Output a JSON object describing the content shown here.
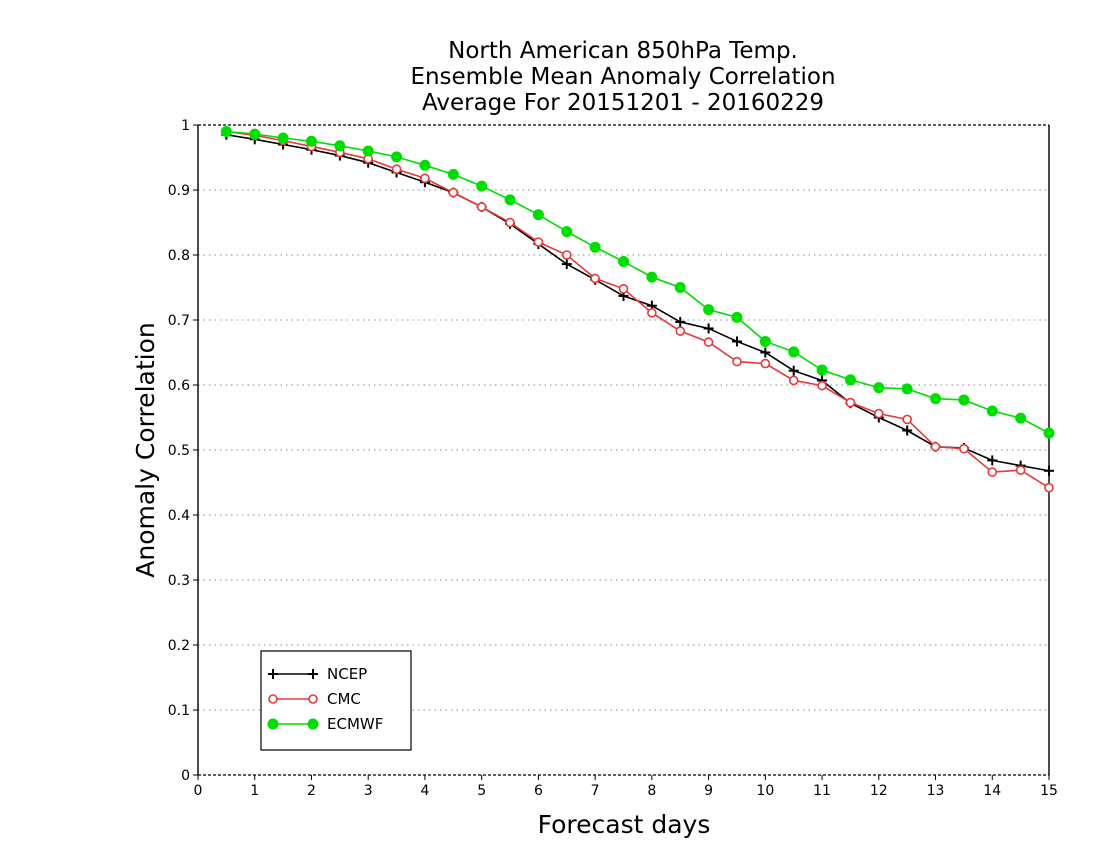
{
  "chart_data": {
    "type": "line",
    "title": [
      "North American 850hPa Temp.",
      "Ensemble Mean Anomaly Correlation",
      "Average For 20151201 - 20160229"
    ],
    "xlabel": "Forecast days",
    "ylabel": "Anomaly Correlation",
    "xlim": [
      0,
      15
    ],
    "ylim": [
      0,
      1
    ],
    "xticks": [
      0,
      1,
      2,
      3,
      4,
      5,
      6,
      7,
      8,
      9,
      10,
      11,
      12,
      13,
      14,
      15
    ],
    "yticks": [
      0,
      0.1,
      0.2,
      0.3,
      0.4,
      0.5,
      0.6,
      0.7,
      0.8,
      0.9,
      1
    ],
    "ytick_labels": [
      "0",
      "0.1",
      "0.2",
      "0.3",
      "0.4",
      "0.5",
      "0.6",
      "0.7",
      "0.8",
      "0.9",
      "1"
    ],
    "grid": "horizontal dotted",
    "legend_position": "lower-left",
    "x": [
      0.5,
      1,
      1.5,
      2,
      2.5,
      3,
      3.5,
      4,
      4.5,
      5,
      5.5,
      6,
      6.5,
      7,
      7.5,
      8,
      8.5,
      9,
      9.5,
      10,
      10.5,
      11,
      11.5,
      12,
      12.5,
      13,
      13.5,
      14,
      14.5,
      15
    ],
    "series": [
      {
        "name": "NCEP",
        "color": "#000000",
        "marker": "plus",
        "values": [
          0.985,
          0.978,
          0.97,
          0.962,
          0.953,
          0.942,
          0.927,
          0.912,
          0.896,
          0.874,
          0.848,
          0.817,
          0.786,
          0.762,
          0.737,
          0.722,
          0.697,
          0.687,
          0.667,
          0.65,
          0.622,
          0.607,
          0.572,
          0.55,
          0.53,
          0.505,
          0.503,
          0.484,
          0.476,
          0.468
        ]
      },
      {
        "name": "CMC",
        "color": "#e8383c",
        "marker": "open-circle",
        "values": [
          0.99,
          0.984,
          0.976,
          0.967,
          0.958,
          0.948,
          0.932,
          0.918,
          0.896,
          0.874,
          0.85,
          0.82,
          0.8,
          0.764,
          0.748,
          0.711,
          0.683,
          0.666,
          0.636,
          0.633,
          0.607,
          0.599,
          0.573,
          0.556,
          0.547,
          0.505,
          0.502,
          0.466,
          0.469,
          0.442
        ]
      },
      {
        "name": "ECMWF",
        "color": "#00dd00",
        "marker": "filled-circle",
        "values": [
          0.99,
          0.986,
          0.98,
          0.975,
          0.968,
          0.96,
          0.951,
          0.938,
          0.924,
          0.906,
          0.885,
          0.862,
          0.836,
          0.812,
          0.79,
          0.766,
          0.75,
          0.716,
          0.704,
          0.667,
          0.651,
          0.623,
          0.608,
          0.596,
          0.594,
          0.579,
          0.577,
          0.56,
          0.549,
          0.526
        ]
      }
    ]
  }
}
